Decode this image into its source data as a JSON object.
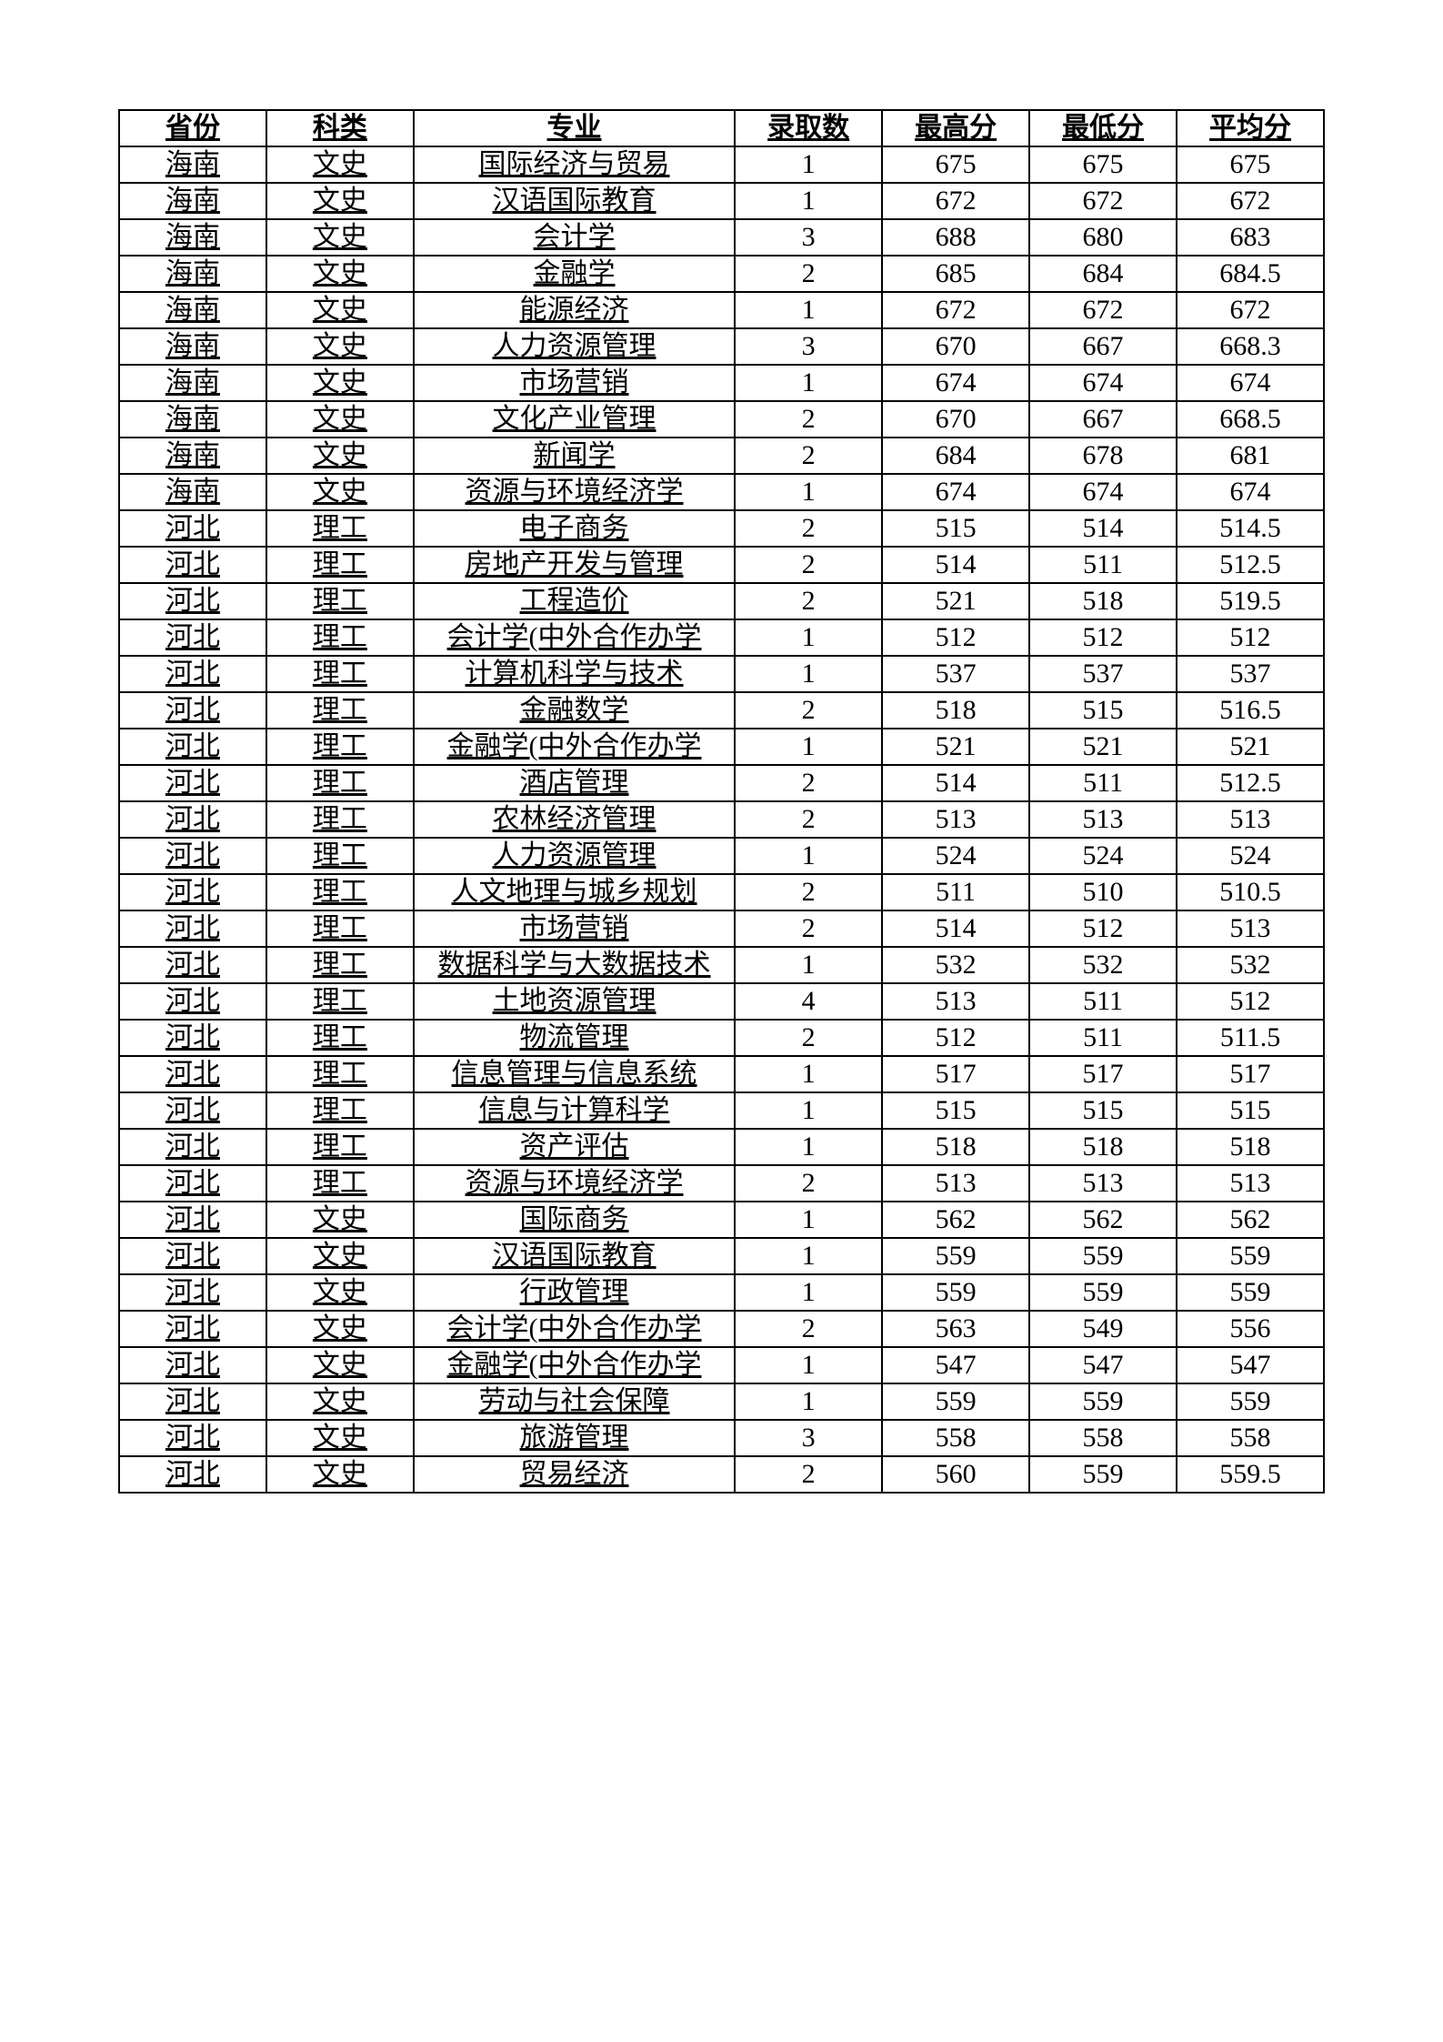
{
  "table": {
    "columns": [
      "省份",
      "科类",
      "专业",
      "录取数",
      "最高分",
      "最低分",
      "平均分"
    ],
    "column_widths_pct": [
      11,
      11,
      24,
      11,
      11,
      11,
      11
    ],
    "border_color": "#000000",
    "background_color": "#ffffff",
    "header_font_weight": 700,
    "text_underline_cols": [
      0,
      1,
      2
    ],
    "cell_fontsize": 30,
    "rows": [
      [
        "海南",
        "文史",
        "国际经济与贸易",
        "1",
        "675",
        "675",
        "675"
      ],
      [
        "海南",
        "文史",
        "汉语国际教育",
        "1",
        "672",
        "672",
        "672"
      ],
      [
        "海南",
        "文史",
        "会计学",
        "3",
        "688",
        "680",
        "683"
      ],
      [
        "海南",
        "文史",
        "金融学",
        "2",
        "685",
        "684",
        "684.5"
      ],
      [
        "海南",
        "文史",
        "能源经济",
        "1",
        "672",
        "672",
        "672"
      ],
      [
        "海南",
        "文史",
        "人力资源管理",
        "3",
        "670",
        "667",
        "668.3"
      ],
      [
        "海南",
        "文史",
        "市场营销",
        "1",
        "674",
        "674",
        "674"
      ],
      [
        "海南",
        "文史",
        "文化产业管理",
        "2",
        "670",
        "667",
        "668.5"
      ],
      [
        "海南",
        "文史",
        "新闻学",
        "2",
        "684",
        "678",
        "681"
      ],
      [
        "海南",
        "文史",
        "资源与环境经济学",
        "1",
        "674",
        "674",
        "674"
      ],
      [
        "河北",
        "理工",
        "电子商务",
        "2",
        "515",
        "514",
        "514.5"
      ],
      [
        "河北",
        "理工",
        "房地产开发与管理",
        "2",
        "514",
        "511",
        "512.5"
      ],
      [
        "河北",
        "理工",
        "工程造价",
        "2",
        "521",
        "518",
        "519.5"
      ],
      [
        "河北",
        "理工",
        "会计学(中外合作办学",
        "1",
        "512",
        "512",
        "512"
      ],
      [
        "河北",
        "理工",
        "计算机科学与技术",
        "1",
        "537",
        "537",
        "537"
      ],
      [
        "河北",
        "理工",
        "金融数学",
        "2",
        "518",
        "515",
        "516.5"
      ],
      [
        "河北",
        "理工",
        "金融学(中外合作办学",
        "1",
        "521",
        "521",
        "521"
      ],
      [
        "河北",
        "理工",
        "酒店管理",
        "2",
        "514",
        "511",
        "512.5"
      ],
      [
        "河北",
        "理工",
        "农林经济管理",
        "2",
        "513",
        "513",
        "513"
      ],
      [
        "河北",
        "理工",
        "人力资源管理",
        "1",
        "524",
        "524",
        "524"
      ],
      [
        "河北",
        "理工",
        "人文地理与城乡规划",
        "2",
        "511",
        "510",
        "510.5"
      ],
      [
        "河北",
        "理工",
        "市场营销",
        "2",
        "514",
        "512",
        "513"
      ],
      [
        "河北",
        "理工",
        "数据科学与大数据技术",
        "1",
        "532",
        "532",
        "532"
      ],
      [
        "河北",
        "理工",
        "土地资源管理",
        "4",
        "513",
        "511",
        "512"
      ],
      [
        "河北",
        "理工",
        "物流管理",
        "2",
        "512",
        "511",
        "511.5"
      ],
      [
        "河北",
        "理工",
        "信息管理与信息系统",
        "1",
        "517",
        "517",
        "517"
      ],
      [
        "河北",
        "理工",
        "信息与计算科学",
        "1",
        "515",
        "515",
        "515"
      ],
      [
        "河北",
        "理工",
        "资产评估",
        "1",
        "518",
        "518",
        "518"
      ],
      [
        "河北",
        "理工",
        "资源与环境经济学",
        "2",
        "513",
        "513",
        "513"
      ],
      [
        "河北",
        "文史",
        "国际商务",
        "1",
        "562",
        "562",
        "562"
      ],
      [
        "河北",
        "文史",
        "汉语国际教育",
        "1",
        "559",
        "559",
        "559"
      ],
      [
        "河北",
        "文史",
        "行政管理",
        "1",
        "559",
        "559",
        "559"
      ],
      [
        "河北",
        "文史",
        "会计学(中外合作办学",
        "2",
        "563",
        "549",
        "556"
      ],
      [
        "河北",
        "文史",
        "金融学(中外合作办学",
        "1",
        "547",
        "547",
        "547"
      ],
      [
        "河北",
        "文史",
        "劳动与社会保障",
        "1",
        "559",
        "559",
        "559"
      ],
      [
        "河北",
        "文史",
        "旅游管理",
        "3",
        "558",
        "558",
        "558"
      ],
      [
        "河北",
        "文史",
        "贸易经济",
        "2",
        "560",
        "559",
        "559.5"
      ]
    ]
  }
}
